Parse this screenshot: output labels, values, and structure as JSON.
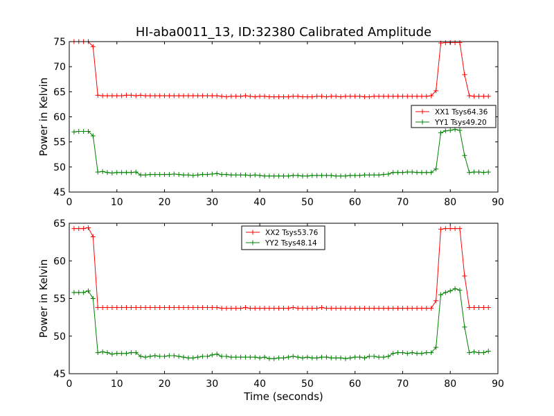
{
  "chart_data": [
    {
      "type": "line",
      "title": "HI-aba0011_13, ID:32380 Calibrated Amplitude",
      "xlabel": "",
      "ylabel": "Power in Kelvin",
      "xlim": [
        0,
        90
      ],
      "ylim": [
        45,
        75
      ],
      "xticks": [
        0,
        10,
        20,
        30,
        40,
        50,
        60,
        70,
        80,
        90
      ],
      "yticks": [
        45,
        50,
        55,
        60,
        65,
        70,
        75
      ],
      "grid": false,
      "legend": "center-right",
      "x": [
        1,
        2,
        3,
        4,
        5,
        6,
        7,
        8,
        9,
        10,
        11,
        12,
        13,
        14,
        15,
        16,
        17,
        18,
        19,
        20,
        21,
        22,
        23,
        24,
        25,
        26,
        27,
        28,
        29,
        30,
        31,
        32,
        33,
        34,
        35,
        36,
        37,
        38,
        39,
        40,
        41,
        42,
        43,
        44,
        45,
        46,
        47,
        48,
        49,
        50,
        51,
        52,
        53,
        54,
        55,
        56,
        57,
        58,
        59,
        60,
        61,
        62,
        63,
        64,
        65,
        66,
        67,
        68,
        69,
        70,
        71,
        72,
        73,
        74,
        75,
        76,
        77,
        78,
        79,
        80,
        81,
        82,
        83,
        84,
        85,
        86,
        87,
        88
      ],
      "series": [
        {
          "name": "XX1 Tsys64.36",
          "color": "#ff0000",
          "values": [
            75,
            75,
            75,
            75,
            74,
            64.3,
            64.2,
            64.2,
            64.2,
            64.2,
            64.2,
            64.3,
            64.3,
            64.2,
            64.3,
            64.2,
            64.2,
            64.2,
            64.2,
            64.2,
            64.2,
            64.2,
            64.2,
            64.2,
            64.2,
            64.2,
            64.2,
            64.2,
            64.2,
            64.2,
            64.2,
            64.1,
            64,
            64.1,
            64.1,
            64.1,
            64.2,
            64.1,
            64,
            64.1,
            64.1,
            64,
            64,
            64,
            64,
            64,
            64.1,
            64.1,
            64,
            64,
            64,
            64.1,
            64.1,
            64,
            64.1,
            64.1,
            64,
            64.1,
            64.1,
            64.1,
            64.1,
            64,
            64,
            64.1,
            64.1,
            64.1,
            64.1,
            64.1,
            64.1,
            64.1,
            64.1,
            64.1,
            64.1,
            64.1,
            64.1,
            64.2,
            65.2,
            74.7,
            74.8,
            74.8,
            74.8,
            74.8,
            68.4,
            64.2,
            64.1,
            64.1,
            64.1,
            64.1
          ]
        },
        {
          "name": "YY1 Tsys49.20",
          "color": "#008000",
          "values": [
            57,
            57.1,
            57.1,
            57.1,
            56.2,
            49,
            49.1,
            48.9,
            48.8,
            48.9,
            48.9,
            48.9,
            48.9,
            49,
            48.4,
            48.4,
            48.5,
            48.5,
            48.5,
            48.5,
            48.5,
            48.6,
            48.5,
            48.4,
            48.4,
            48.3,
            48.4,
            48.5,
            48.5,
            48.6,
            48.7,
            48.5,
            48.5,
            48.4,
            48.4,
            48.4,
            48.4,
            48.3,
            48.4,
            48.3,
            48.2,
            48.2,
            48.2,
            48.2,
            48.2,
            48.2,
            48.3,
            48.3,
            48.2,
            48.2,
            48.3,
            48.3,
            48.3,
            48.3,
            48.3,
            48.2,
            48.2,
            48.2,
            48.3,
            48.3,
            48.3,
            48.4,
            48.4,
            48.4,
            48.4,
            48.5,
            48.6,
            48.9,
            48.9,
            48.9,
            49,
            49,
            48.9,
            48.9,
            48.9,
            48.9,
            49.6,
            56.8,
            57.2,
            57.3,
            57.5,
            57.3,
            52.3,
            48.9,
            49,
            49,
            48.9,
            49
          ]
        }
      ]
    },
    {
      "type": "line",
      "title": "",
      "xlabel": "Time (seconds)",
      "ylabel": "Power in Kelvin",
      "xlim": [
        0,
        90
      ],
      "ylim": [
        45,
        65
      ],
      "xticks": [
        0,
        10,
        20,
        30,
        40,
        50,
        60,
        70,
        80,
        90
      ],
      "yticks": [
        45,
        50,
        55,
        60,
        65
      ],
      "grid": false,
      "legend": "top-center",
      "x": [
        1,
        2,
        3,
        4,
        5,
        6,
        7,
        8,
        9,
        10,
        11,
        12,
        13,
        14,
        15,
        16,
        17,
        18,
        19,
        20,
        21,
        22,
        23,
        24,
        25,
        26,
        27,
        28,
        29,
        30,
        31,
        32,
        33,
        34,
        35,
        36,
        37,
        38,
        39,
        40,
        41,
        42,
        43,
        44,
        45,
        46,
        47,
        48,
        49,
        50,
        51,
        52,
        53,
        54,
        55,
        56,
        57,
        58,
        59,
        60,
        61,
        62,
        63,
        64,
        65,
        66,
        67,
        68,
        69,
        70,
        71,
        72,
        73,
        74,
        75,
        76,
        77,
        78,
        79,
        80,
        81,
        82,
        83,
        84,
        85,
        86,
        87,
        88
      ],
      "series": [
        {
          "name": "XX2 Tsys53.76",
          "color": "#ff0000",
          "values": [
            64.3,
            64.3,
            64.3,
            64.4,
            63.2,
            53.8,
            53.8,
            53.8,
            53.8,
            53.8,
            53.8,
            53.8,
            53.8,
            53.8,
            53.8,
            53.8,
            53.8,
            53.8,
            53.8,
            53.8,
            53.8,
            53.8,
            53.8,
            53.8,
            53.8,
            53.8,
            53.8,
            53.8,
            53.8,
            53.8,
            53.8,
            53.7,
            53.7,
            53.7,
            53.7,
            53.7,
            53.8,
            53.7,
            53.7,
            53.7,
            53.7,
            53.7,
            53.7,
            53.7,
            53.7,
            53.7,
            53.8,
            53.7,
            53.7,
            53.7,
            53.7,
            53.7,
            53.8,
            53.7,
            53.7,
            53.7,
            53.7,
            53.7,
            53.7,
            53.7,
            53.7,
            53.7,
            53.7,
            53.7,
            53.7,
            53.7,
            53.7,
            53.7,
            53.7,
            53.7,
            53.7,
            53.7,
            53.7,
            53.7,
            53.7,
            53.7,
            54.7,
            64.2,
            64.3,
            64.3,
            64.3,
            64.3,
            58,
            53.8,
            53.8,
            53.8,
            53.8,
            53.8
          ]
        },
        {
          "name": "YY2 Tsys48.14",
          "color": "#008000",
          "values": [
            55.8,
            55.8,
            55.8,
            56,
            55,
            47.8,
            47.9,
            47.8,
            47.6,
            47.7,
            47.7,
            47.7,
            47.8,
            47.8,
            47.3,
            47.2,
            47.3,
            47.4,
            47.3,
            47.3,
            47.4,
            47.4,
            47.3,
            47.2,
            47.1,
            47.1,
            47.2,
            47.3,
            47.3,
            47.5,
            47.6,
            47.3,
            47.3,
            47.2,
            47.2,
            47.2,
            47.2,
            47.2,
            47.2,
            47.1,
            47.2,
            47,
            47,
            47.1,
            47.1,
            47.2,
            47.3,
            47.2,
            47.1,
            47.2,
            47.1,
            47.1,
            47.2,
            47.2,
            47.1,
            47.1,
            47.1,
            47,
            47.1,
            47.2,
            47.2,
            47.1,
            47.3,
            47.3,
            47.2,
            47.2,
            47.3,
            47.7,
            47.8,
            47.8,
            47.7,
            47.8,
            47.7,
            47.7,
            47.8,
            47.8,
            48.5,
            55.5,
            55.8,
            56,
            56.3,
            56.1,
            51.2,
            47.8,
            47.9,
            47.8,
            47.8,
            48
          ]
        }
      ]
    }
  ]
}
